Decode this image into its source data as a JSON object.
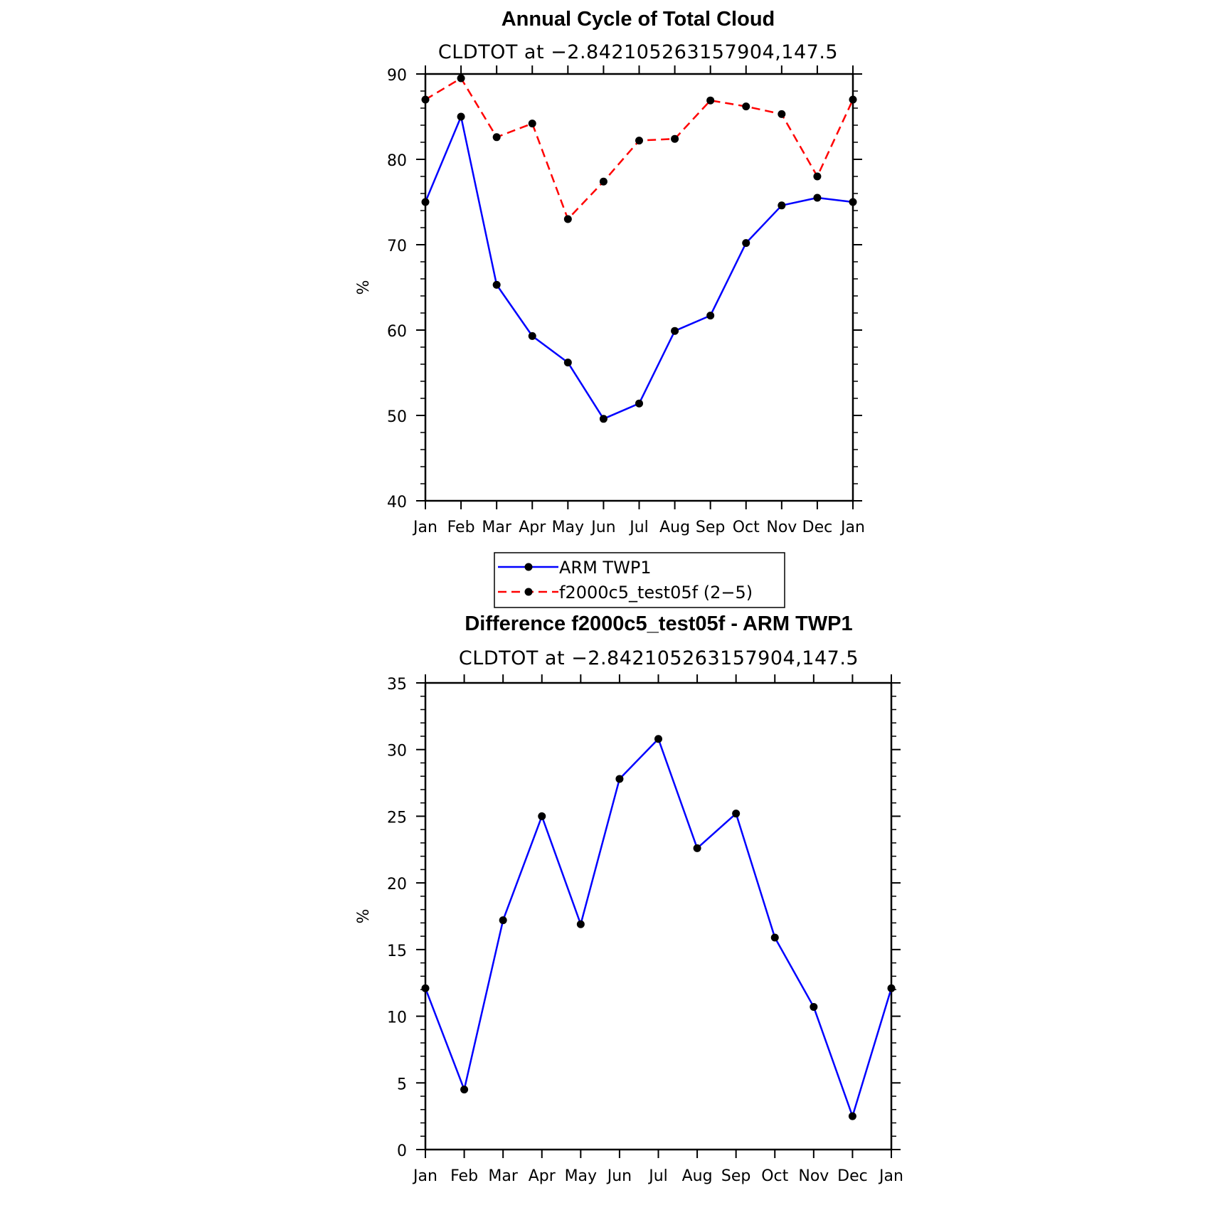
{
  "chart_data": [
    {
      "type": "line",
      "title": "Annual Cycle of Total Cloud",
      "subtitle": "CLDTOT at −2.842105263157904,147.5",
      "ylabel": "%",
      "xlabel": "",
      "ylim": [
        40,
        90
      ],
      "yticks": [
        40,
        50,
        60,
        70,
        80,
        90
      ],
      "categories": [
        "Jan",
        "Feb",
        "Mar",
        "Apr",
        "May",
        "Jun",
        "Jul",
        "Aug",
        "Sep",
        "Oct",
        "Nov",
        "Dec",
        "Jan"
      ],
      "series": [
        {
          "name": "ARM TWP1",
          "color": "#0000ff",
          "dash": "solid",
          "values": [
            75.0,
            85.0,
            65.3,
            59.3,
            56.2,
            49.6,
            51.4,
            59.9,
            61.7,
            70.2,
            74.6,
            75.5,
            75.0
          ]
        },
        {
          "name": "f2000c5_test05f (2−5)",
          "color": "#ff0000",
          "dash": "dashed",
          "values": [
            87.0,
            89.5,
            82.6,
            84.2,
            73.0,
            77.4,
            82.2,
            82.4,
            86.9,
            86.2,
            85.3,
            78.0,
            87.0
          ]
        }
      ],
      "legend_position": "below"
    },
    {
      "type": "line",
      "title": "Difference f2000c5_test05f - ARM TWP1",
      "subtitle": "CLDTOT at −2.842105263157904,147.5",
      "ylabel": "%",
      "xlabel": "",
      "ylim": [
        0,
        35
      ],
      "yticks": [
        0,
        5,
        10,
        15,
        20,
        25,
        30,
        35
      ],
      "categories": [
        "Jan",
        "Feb",
        "Mar",
        "Apr",
        "May",
        "Jun",
        "Jul",
        "Aug",
        "Sep",
        "Oct",
        "Nov",
        "Dec",
        "Jan"
      ],
      "series": [
        {
          "color": "#0000ff",
          "dash": "solid",
          "values": [
            12.1,
            4.5,
            17.2,
            25.0,
            16.9,
            27.8,
            30.8,
            22.6,
            25.2,
            15.9,
            10.7,
            2.5,
            12.1
          ]
        }
      ]
    }
  ]
}
